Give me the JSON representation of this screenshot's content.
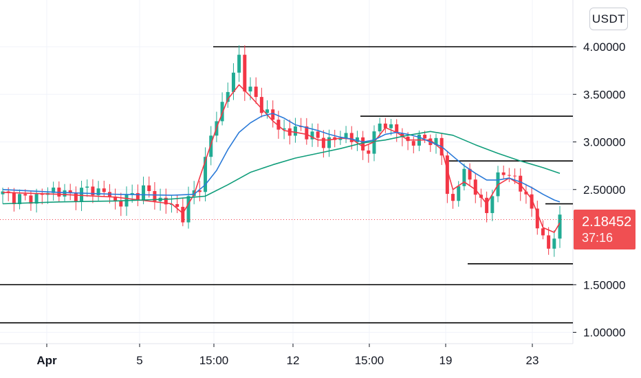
{
  "currency": "USDT",
  "last_price": "2.18452",
  "countdown": "37:16",
  "colors": {
    "up": "#22ab94",
    "down": "#f23645",
    "ema_fast": "#f23645",
    "ma_mid": "#2979d8",
    "ma_slow": "#0f9d7a",
    "level_line": "#000000",
    "price_tag": "#f04f52"
  },
  "chart_data": {
    "type": "candlestick",
    "symbol_quote": "USDT",
    "y_axis": {
      "position": "right",
      "ticks": [
        "4.00000",
        "3.50000",
        "3.00000",
        "2.50000",
        "1.50000",
        "1.00000"
      ],
      "range": [
        0.97,
        4.45
      ]
    },
    "x_axis": {
      "tick_labels": [
        {
          "label": "Apr",
          "bold": true
        },
        {
          "label": "5",
          "bold": false
        },
        {
          "label": "15:00",
          "bold": false
        },
        {
          "label": "12",
          "bold": false
        },
        {
          "label": "15:00",
          "bold": false
        },
        {
          "label": "19",
          "bold": false
        },
        {
          "label": "23",
          "bold": false
        }
      ]
    },
    "grid": true,
    "horizontal_levels": [
      {
        "price": 4.0,
        "span": "partial"
      },
      {
        "price": 3.27,
        "span": "partial"
      },
      {
        "price": 2.8,
        "span": "partial"
      },
      {
        "price": 2.35,
        "span": "partial"
      },
      {
        "price": 1.72,
        "span": "partial"
      },
      {
        "price": 1.5,
        "span": "full"
      },
      {
        "price": 1.1,
        "span": "full"
      }
    ],
    "last_price": 2.18452,
    "candle_close_path": [
      [
        0,
        2.45
      ],
      [
        4,
        2.4
      ],
      [
        7,
        2.44
      ],
      [
        9,
        2.5
      ],
      [
        12,
        2.43
      ],
      [
        15,
        2.5
      ],
      [
        18,
        2.48
      ],
      [
        20,
        2.36
      ],
      [
        22,
        2.4
      ],
      [
        25,
        2.5
      ],
      [
        27,
        2.42
      ],
      [
        29,
        2.36
      ],
      [
        31,
        2.3
      ],
      [
        32,
        2.22
      ],
      [
        33,
        2.38
      ],
      [
        35,
        2.55
      ],
      [
        36,
        2.8
      ],
      [
        37,
        3.05
      ],
      [
        38,
        3.25
      ],
      [
        39,
        3.4
      ],
      [
        40,
        3.55
      ],
      [
        41,
        3.7
      ],
      [
        42,
        3.9
      ],
      [
        43,
        3.6
      ],
      [
        45,
        3.45
      ],
      [
        47,
        3.3
      ],
      [
        49,
        3.15
      ],
      [
        51,
        3.1
      ],
      [
        53,
        3.15
      ],
      [
        55,
        3.05
      ],
      [
        57,
        3.0
      ],
      [
        59,
        3.02
      ],
      [
        61,
        3.08
      ],
      [
        63,
        3.0
      ],
      [
        64,
        2.9
      ],
      [
        65,
        2.95
      ],
      [
        66,
        3.05
      ],
      [
        67,
        3.18
      ],
      [
        68,
        3.2
      ],
      [
        70,
        3.1
      ],
      [
        72,
        3.0
      ],
      [
        74,
        3.02
      ],
      [
        76,
        3.04
      ],
      [
        77,
        2.98
      ],
      [
        78,
        2.85
      ],
      [
        79,
        2.5
      ],
      [
        80,
        2.35
      ],
      [
        81,
        2.55
      ],
      [
        82,
        2.7
      ],
      [
        83,
        2.6
      ],
      [
        84,
        2.5
      ],
      [
        85,
        2.35
      ],
      [
        86,
        2.25
      ],
      [
        87,
        2.5
      ],
      [
        88,
        2.62
      ],
      [
        89,
        2.65
      ],
      [
        90,
        2.68
      ],
      [
        91,
        2.62
      ],
      [
        92,
        2.5
      ],
      [
        93,
        2.42
      ],
      [
        94,
        2.3
      ],
      [
        95,
        2.15
      ],
      [
        96,
        1.95
      ],
      [
        97,
        1.88
      ],
      [
        98,
        2.05
      ],
      [
        99,
        2.18
      ]
    ],
    "series": [
      {
        "kind": "ema_fast",
        "values": [
          [
            0,
            2.47
          ],
          [
            10,
            2.45
          ],
          [
            20,
            2.42
          ],
          [
            30,
            2.35
          ],
          [
            32,
            2.25
          ],
          [
            34,
            2.45
          ],
          [
            36,
            2.8
          ],
          [
            38,
            3.15
          ],
          [
            40,
            3.45
          ],
          [
            42,
            3.6
          ],
          [
            44,
            3.48
          ],
          [
            46,
            3.35
          ],
          [
            48,
            3.22
          ],
          [
            50,
            3.12
          ],
          [
            52,
            3.1
          ],
          [
            54,
            3.08
          ],
          [
            56,
            3.02
          ],
          [
            58,
            3.02
          ],
          [
            60,
            3.04
          ],
          [
            62,
            3.03
          ],
          [
            64,
            2.95
          ],
          [
            66,
            3.0
          ],
          [
            68,
            3.15
          ],
          [
            70,
            3.1
          ],
          [
            72,
            3.02
          ],
          [
            74,
            3.02
          ],
          [
            76,
            3.02
          ],
          [
            78,
            2.92
          ],
          [
            80,
            2.5
          ],
          [
            82,
            2.58
          ],
          [
            84,
            2.5
          ],
          [
            86,
            2.35
          ],
          [
            88,
            2.55
          ],
          [
            90,
            2.62
          ],
          [
            92,
            2.55
          ],
          [
            94,
            2.4
          ],
          [
            96,
            2.1
          ],
          [
            98,
            2.05
          ],
          [
            99,
            2.15
          ]
        ]
      },
      {
        "kind": "ma_mid",
        "values": [
          [
            0,
            2.5
          ],
          [
            10,
            2.47
          ],
          [
            20,
            2.45
          ],
          [
            30,
            2.44
          ],
          [
            34,
            2.45
          ],
          [
            36,
            2.55
          ],
          [
            38,
            2.7
          ],
          [
            40,
            2.92
          ],
          [
            42,
            3.1
          ],
          [
            44,
            3.2
          ],
          [
            46,
            3.27
          ],
          [
            48,
            3.3
          ],
          [
            50,
            3.25
          ],
          [
            52,
            3.18
          ],
          [
            54,
            3.15
          ],
          [
            56,
            3.12
          ],
          [
            58,
            3.08
          ],
          [
            60,
            3.05
          ],
          [
            62,
            3.03
          ],
          [
            64,
            3.0
          ],
          [
            66,
            3.02
          ],
          [
            68,
            3.08
          ],
          [
            70,
            3.1
          ],
          [
            72,
            3.08
          ],
          [
            74,
            3.05
          ],
          [
            76,
            3.0
          ],
          [
            78,
            2.95
          ],
          [
            80,
            2.85
          ],
          [
            82,
            2.75
          ],
          [
            84,
            2.67
          ],
          [
            86,
            2.6
          ],
          [
            88,
            2.6
          ],
          [
            90,
            2.62
          ],
          [
            92,
            2.58
          ],
          [
            94,
            2.52
          ],
          [
            96,
            2.45
          ],
          [
            98,
            2.39
          ],
          [
            99,
            2.37
          ]
        ]
      },
      {
        "kind": "ma_slow",
        "values": [
          [
            0,
            2.35
          ],
          [
            10,
            2.37
          ],
          [
            20,
            2.38
          ],
          [
            30,
            2.4
          ],
          [
            36,
            2.43
          ],
          [
            40,
            2.55
          ],
          [
            44,
            2.68
          ],
          [
            48,
            2.76
          ],
          [
            52,
            2.83
          ],
          [
            56,
            2.88
          ],
          [
            60,
            2.93
          ],
          [
            64,
            2.99
          ],
          [
            68,
            3.02
          ],
          [
            72,
            3.07
          ],
          [
            76,
            3.11
          ],
          [
            80,
            3.07
          ],
          [
            84,
            2.97
          ],
          [
            88,
            2.88
          ],
          [
            92,
            2.8
          ],
          [
            96,
            2.73
          ],
          [
            99,
            2.67
          ]
        ]
      }
    ]
  }
}
